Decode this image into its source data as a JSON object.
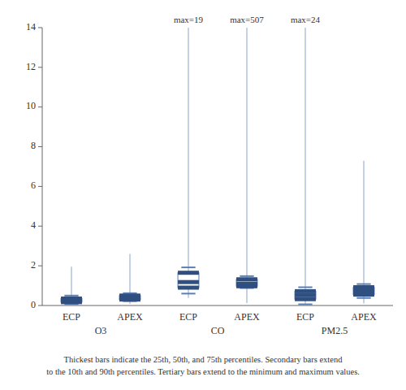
{
  "chart_data": {
    "type": "box",
    "categories": [
      "ECP",
      "APEX",
      "ECP",
      "APEX",
      "ECP",
      "APEX"
    ],
    "category_groups": [
      "O3",
      "O3",
      "CO",
      "CO",
      "PM2.5",
      "PM2.5"
    ],
    "min": [
      0.02,
      0.08,
      0.38,
      0.12,
      0.01,
      0.1
    ],
    "p10": [
      0.07,
      0.22,
      0.6,
      0.88,
      0.06,
      0.38
    ],
    "p25": [
      0.17,
      0.3,
      0.9,
      0.97,
      0.32,
      0.55
    ],
    "p50": [
      0.25,
      0.38,
      1.18,
      1.1,
      0.52,
      0.72
    ],
    "p75": [
      0.35,
      0.5,
      1.65,
      1.32,
      0.72,
      0.92
    ],
    "p90": [
      0.5,
      0.62,
      1.92,
      1.48,
      0.92,
      1.08
    ],
    "max": [
      1.95,
      2.6,
      14.0,
      14.0,
      14.0,
      7.3
    ],
    "annotations": [
      null,
      null,
      "max=19",
      "max=507",
      "max=24",
      null
    ],
    "ylim": [
      0,
      14
    ],
    "yticks": [
      0,
      2,
      4,
      6,
      8,
      10,
      12,
      14
    ],
    "grid": false,
    "footnote": [
      "Thickest bars indicate the 25th, 50th, and 75th percentiles.  Secondary bars extend",
      "to the 10th and 90th percentiles.  Tertiary bars extend to the minimum and maximum values."
    ]
  }
}
